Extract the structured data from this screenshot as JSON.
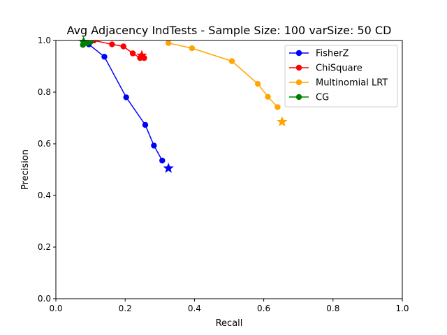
{
  "chart_data": {
    "type": "line",
    "title": "Avg Adjacency IndTests - Sample Size: 100 varSize: 50 CD",
    "xlabel": "Recall",
    "ylabel": "Precision",
    "xlim": [
      0.0,
      1.0
    ],
    "ylim": [
      0.0,
      1.0
    ],
    "xticks": [
      "0.0",
      "0.2",
      "0.4",
      "0.6",
      "0.8",
      "1.0"
    ],
    "yticks": [
      "0.0",
      "0.2",
      "0.4",
      "0.6",
      "0.8",
      "1.0"
    ],
    "grid": false,
    "legend_position": "top-right",
    "series": [
      {
        "name": "FisherZ",
        "color": "#0000ff",
        "x": [
          0.08,
          0.095,
          0.14,
          0.203,
          0.258,
          0.283,
          0.307
        ],
        "y": [
          0.995,
          0.985,
          0.937,
          0.78,
          0.673,
          0.593,
          0.535
        ],
        "star": {
          "x": 0.325,
          "y": 0.505
        }
      },
      {
        "name": "ChiSquare",
        "color": "#ff0000",
        "x": [
          0.085,
          0.11,
          0.162,
          0.195,
          0.222,
          0.243,
          0.255
        ],
        "y": [
          1.0,
          1.0,
          0.985,
          0.977,
          0.95,
          0.932,
          0.932
        ],
        "star": {
          "x": 0.248,
          "y": 0.942
        }
      },
      {
        "name": "Multinomial LRT",
        "color": "#ffa500",
        "x": [
          0.325,
          0.393,
          0.508,
          0.583,
          0.612,
          0.64
        ],
        "y": [
          0.99,
          0.97,
          0.92,
          0.832,
          0.782,
          0.742
        ],
        "star": {
          "x": 0.653,
          "y": 0.685
        }
      },
      {
        "name": "CG",
        "color": "#008000",
        "x": [
          0.078,
          0.085,
          0.09,
          0.1
        ],
        "y": [
          0.983,
          0.997,
          0.99,
          0.995
        ],
        "star": {
          "x": 0.08,
          "y": 0.995
        }
      }
    ]
  }
}
